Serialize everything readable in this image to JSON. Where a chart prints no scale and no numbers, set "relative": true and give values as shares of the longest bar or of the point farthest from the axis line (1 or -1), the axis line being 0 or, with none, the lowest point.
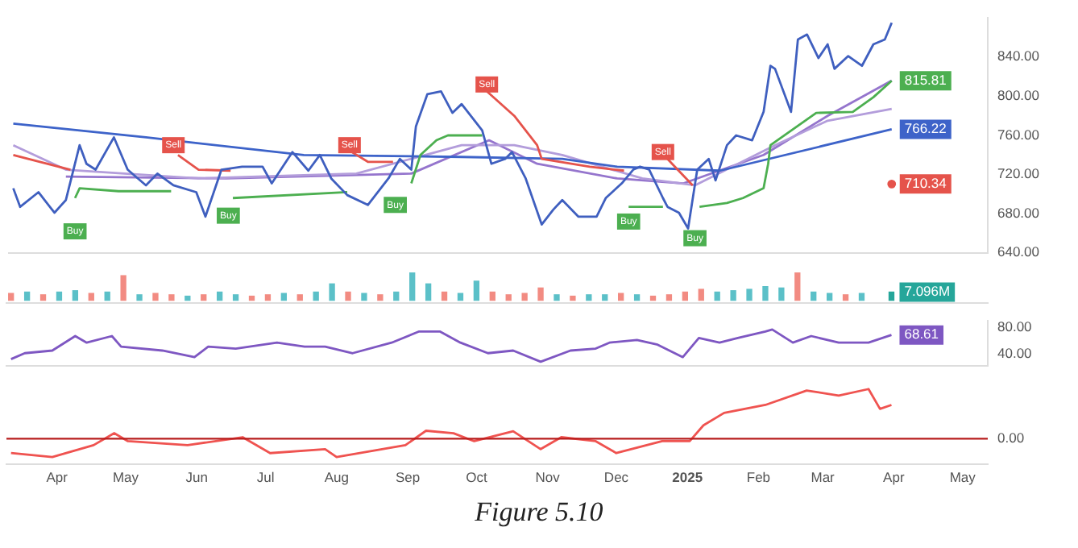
{
  "chart_data": [
    {
      "type": "line",
      "xlim": [
        "2024-03-10",
        "2025-05-12"
      ],
      "ylim": [
        640,
        880
      ],
      "yticks": [
        {
          "value": 640,
          "label": "640.00"
        },
        {
          "value": 680,
          "label": "680.00"
        },
        {
          "value": 720,
          "label": "720.00"
        },
        {
          "value": 760,
          "label": "760.00"
        },
        {
          "value": 800,
          "label": "800.00"
        },
        {
          "value": 840,
          "label": "840.00"
        }
      ],
      "tick_labels": "y",
      "marker": "none",
      "series": [
        {
          "color": "#3f5fbf",
          "x": [
            "2024-03-12",
            "2024-03-15",
            "2024-03-23",
            "2024-03-30",
            "2024-04-04",
            "2024-04-10",
            "2024-04-13",
            "2024-04-17",
            "2024-04-25",
            "2024-05-01",
            "2024-05-09",
            "2024-05-14",
            "2024-05-21",
            "2024-05-31",
            "2024-06-04",
            "2024-06-11",
            "2024-06-20",
            "2024-06-29",
            "2024-07-03",
            "2024-07-12",
            "2024-07-19",
            "2024-07-24",
            "2024-07-29",
            "2024-08-05",
            "2024-08-14",
            "2024-08-23",
            "2024-08-28",
            "2024-09-02",
            "2024-09-04",
            "2024-09-09",
            "2024-09-15",
            "2024-09-20",
            "2024-09-24",
            "2024-10-03",
            "2024-10-07",
            "2024-10-13",
            "2024-10-16",
            "2024-10-22",
            "2024-10-29",
            "2024-11-03",
            "2024-11-07",
            "2024-11-14",
            "2024-11-22",
            "2024-11-26",
            "2024-12-03",
            "2024-12-08",
            "2024-12-11",
            "2024-12-15",
            "2024-12-21",
            "2024-12-23",
            "2024-12-28",
            "2025-01-01",
            "2025-01-05",
            "2025-01-10",
            "2025-01-13",
            "2025-01-18",
            "2025-01-22",
            "2025-01-29",
            "2025-02-03",
            "2025-02-06",
            "2025-02-08",
            "2025-02-15",
            "2025-02-18",
            "2025-02-22",
            "2025-02-27",
            "2025-03-03",
            "2025-03-06",
            "2025-03-12",
            "2025-03-18",
            "2025-03-23",
            "2025-03-28",
            "2025-03-31"
          ],
          "values": [
            706,
            687,
            702,
            681,
            694,
            750,
            731,
            725,
            758,
            725,
            709,
            721,
            709,
            702,
            677,
            725,
            728,
            728,
            711,
            743,
            724,
            740,
            716,
            699,
            689,
            716,
            736,
            725,
            769,
            802,
            805,
            783,
            792,
            765,
            731,
            736,
            743,
            716,
            669,
            684,
            694,
            677,
            677,
            696,
            711,
            725,
            728,
            725,
            696,
            687,
            681,
            665,
            725,
            736,
            714,
            750,
            760,
            755,
            784,
            831,
            828,
            784,
            858,
            863,
            839,
            853,
            828,
            841,
            831,
            853,
            858,
            875
          ]
        },
        {
          "color": "#4caf50",
          "x": [
            "2024-04-08",
            "2024-04-10",
            "2024-04-27",
            "2024-05-20",
            "2024-05-21",
            "2024-06-16",
            "2024-08-05",
            "2024-08-06",
            "2024-09-02",
            "2024-09-06",
            "2024-09-13",
            "2024-09-18",
            "2024-10-03",
            "2024-10-04",
            "2024-12-06",
            "2024-12-21",
            "2024-12-22",
            "2025-01-06",
            "2025-01-18",
            "2025-01-25",
            "2025-02-03",
            "2025-02-05",
            "2025-02-06",
            "2025-02-26",
            "2025-03-14",
            "2025-03-23",
            "2025-03-31"
          ],
          "values": [
            696,
            706,
            703,
            703,
            null,
            696,
            702,
            null,
            711,
            740,
            755,
            760,
            760,
            null,
            687,
            687,
            null,
            687,
            691,
            696,
            706,
            731,
            750,
            783,
            784,
            799,
            815.81
          ],
          "value_labels": [
            null,
            null,
            null,
            null,
            null,
            null,
            null,
            null,
            null,
            null,
            null,
            null,
            null,
            null,
            null,
            null,
            null,
            null,
            null,
            null,
            null,
            null,
            null,
            null,
            null,
            null,
            "815.81"
          ]
        },
        {
          "color": "#e5534b",
          "x": [
            "2024-03-12",
            "2024-04-06",
            "2024-04-07",
            "2024-05-23",
            "2024-06-01",
            "2024-06-15",
            "2024-06-16",
            "2024-08-07",
            "2024-08-14",
            "2024-08-25",
            "2024-08-26",
            "2024-10-05",
            "2024-10-17",
            "2024-10-27",
            "2024-10-29",
            "2024-11-19",
            "2024-12-04",
            "2024-12-05",
            "2024-12-23",
            "2025-01-03",
            "2025-01-04",
            "2025-03-31"
          ],
          "values": [
            740,
            725,
            null,
            740,
            725,
            724,
            null,
            743,
            733,
            733,
            null,
            805,
            780,
            750,
            736,
            728,
            724,
            null,
            736,
            709,
            null,
            710.34
          ],
          "value_labels": [
            null,
            null,
            null,
            null,
            null,
            null,
            null,
            null,
            null,
            null,
            null,
            null,
            null,
            null,
            null,
            null,
            null,
            null,
            null,
            null,
            null,
            "710.34"
          ]
        },
        {
          "color": "#3d63c9",
          "x": [
            "2024-03-12",
            "2024-05-09",
            "2024-07-17",
            "2024-09-24",
            "2024-11-07",
            "2024-12-01",
            "2025-01-15",
            "2025-03-31"
          ],
          "values": [
            772,
            758,
            740,
            738,
            736,
            728,
            724,
            766.22
          ],
          "value_labels": [
            null,
            null,
            null,
            null,
            null,
            null,
            null,
            "766.22"
          ]
        },
        {
          "color": "#b39ddb",
          "x": [
            "2024-03-12",
            "2024-04-04",
            "2024-06-01",
            "2024-08-09",
            "2024-09-24",
            "2024-10-17",
            "2024-11-07",
            "2024-12-12",
            "2025-01-04",
            "2025-02-08",
            "2025-03-03",
            "2025-03-31"
          ],
          "values": [
            750,
            725,
            716,
            721,
            750,
            750,
            740,
            716,
            709,
            750,
            775,
            787
          ]
        },
        {
          "color": "#9575cd",
          "x": [
            "2024-04-04",
            "2024-06-13",
            "2024-09-02",
            "2024-10-06",
            "2024-10-27",
            "2024-12-01",
            "2024-12-30",
            "2025-02-03",
            "2025-03-03",
            "2025-03-31"
          ],
          "values": [
            718,
            716,
            721,
            755,
            731,
            716,
            711,
            740,
            780,
            816
          ]
        }
      ],
      "annotations": [
        {
          "text": "Buy",
          "x": "2024-04-08",
          "y": 662
        },
        {
          "text": "Buy",
          "x": "2024-06-14",
          "y": 678
        },
        {
          "text": "Buy",
          "x": "2024-08-26",
          "y": 689
        },
        {
          "text": "Buy",
          "x": "2024-12-06",
          "y": 672
        },
        {
          "text": "Buy",
          "x": "2025-01-04",
          "y": 655
        },
        {
          "text": "Sell",
          "x": "2024-05-21",
          "y": 750
        },
        {
          "text": "Sell",
          "x": "2024-08-06",
          "y": 750
        },
        {
          "text": "Sell",
          "x": "2024-10-05",
          "y": 812
        },
        {
          "text": "Sell",
          "x": "2024-12-21",
          "y": 743
        }
      ]
    },
    {
      "type": "bar",
      "relative": true,
      "tick_labels": false,
      "xlim": [
        "2024-03-10",
        "2025-05-12"
      ],
      "annotations": [
        "7.096M"
      ],
      "x": [
        "2024-03-12",
        "2024-03-19",
        "2024-03-26",
        "2024-04-02",
        "2024-04-09",
        "2024-04-16",
        "2024-04-23",
        "2024-04-30",
        "2024-05-07",
        "2024-05-14",
        "2024-05-21",
        "2024-05-28",
        "2024-06-04",
        "2024-06-11",
        "2024-06-18",
        "2024-06-25",
        "2024-07-02",
        "2024-07-09",
        "2024-07-16",
        "2024-07-23",
        "2024-07-30",
        "2024-08-06",
        "2024-08-13",
        "2024-08-20",
        "2024-08-27",
        "2024-09-03",
        "2024-09-10",
        "2024-09-17",
        "2024-09-24",
        "2024-10-01",
        "2024-10-08",
        "2024-10-15",
        "2024-10-22",
        "2024-10-29",
        "2024-11-05",
        "2024-11-12",
        "2024-11-19",
        "2024-11-26",
        "2024-12-03",
        "2024-12-10",
        "2024-12-17",
        "2024-12-24",
        "2024-12-31",
        "2025-01-07",
        "2025-01-14",
        "2025-01-21",
        "2025-01-28",
        "2025-02-04",
        "2025-02-11",
        "2025-02-18",
        "2025-02-25",
        "2025-03-04",
        "2025-03-11",
        "2025-03-18",
        "2025-03-31"
      ],
      "values": [
        0.25,
        0.3,
        0.2,
        0.3,
        0.35,
        0.25,
        0.3,
        0.9,
        0.2,
        0.25,
        0.2,
        0.15,
        0.2,
        0.3,
        0.2,
        0.15,
        0.2,
        0.25,
        0.2,
        0.3,
        0.6,
        0.3,
        0.25,
        0.2,
        0.3,
        1,
        0.6,
        0.3,
        0.25,
        0.7,
        0.3,
        0.2,
        0.25,
        0.45,
        0.2,
        0.15,
        0.2,
        0.2,
        0.25,
        0.2,
        0.15,
        0.2,
        0.3,
        0.4,
        0.3,
        0.35,
        0.4,
        0.5,
        0.45,
        1,
        0.3,
        0.25,
        0.2,
        0.25,
        0.3
      ],
      "colors": [
        "#f28b82",
        "#5bc0c8",
        "#f28b82",
        "#5bc0c8",
        "#5bc0c8",
        "#f28b82",
        "#5bc0c8",
        "#f28b82",
        "#5bc0c8",
        "#f28b82",
        "#f28b82",
        "#5bc0c8",
        "#f28b82",
        "#5bc0c8",
        "#5bc0c8",
        "#f28b82",
        "#f28b82",
        "#5bc0c8",
        "#f28b82",
        "#5bc0c8",
        "#5bc0c8",
        "#f28b82",
        "#5bc0c8",
        "#f28b82",
        "#5bc0c8",
        "#5bc0c8",
        "#5bc0c8",
        "#f28b82",
        "#5bc0c8",
        "#5bc0c8",
        "#f28b82",
        "#f28b82",
        "#f28b82",
        "#f28b82",
        "#5bc0c8",
        "#f28b82",
        "#5bc0c8",
        "#5bc0c8",
        "#f28b82",
        "#5bc0c8",
        "#f28b82",
        "#f28b82",
        "#f28b82",
        "#f28b82",
        "#5bc0c8",
        "#5bc0c8",
        "#5bc0c8",
        "#5bc0c8",
        "#5bc0c8",
        "#f28b82",
        "#5bc0c8",
        "#5bc0c8",
        "#f28b82",
        "#5bc0c8",
        "#26a69a"
      ],
      "grid": false
    },
    {
      "type": "line",
      "tick_labels": "y",
      "marker": "none",
      "xlim": [
        "2024-03-10",
        "2025-05-12"
      ],
      "ylim": [
        22,
        90
      ],
      "yticks": [
        {
          "value": 40,
          "label": "40.00"
        },
        {
          "value": 80,
          "label": "80.00"
        }
      ],
      "series": [
        {
          "color": "#7e57c2",
          "x": [
            "2024-03-12",
            "2024-03-18",
            "2024-03-30",
            "2024-04-09",
            "2024-04-14",
            "2024-04-25",
            "2024-04-29",
            "2024-05-17",
            "2024-05-31",
            "2024-06-06",
            "2024-06-18",
            "2024-07-06",
            "2024-07-18",
            "2024-07-27",
            "2024-08-08",
            "2024-08-25",
            "2024-09-06",
            "2024-09-15",
            "2024-09-24",
            "2024-10-06",
            "2024-10-17",
            "2024-10-29",
            "2024-11-11",
            "2024-11-22",
            "2024-11-28",
            "2024-12-10",
            "2024-12-19",
            "2024-12-30",
            "2025-01-06",
            "2025-01-15",
            "2025-01-23",
            "2025-02-04",
            "2025-02-07",
            "2025-02-16",
            "2025-02-24",
            "2025-03-08",
            "2025-03-21",
            "2025-03-31"
          ],
          "values": [
            32,
            41,
            45,
            67,
            57,
            67,
            51,
            45,
            35,
            51,
            48,
            57,
            51,
            51,
            41,
            57,
            74,
            74,
            57,
            41,
            45,
            28,
            45,
            48,
            57,
            61,
            54,
            35,
            64,
            57,
            64,
            74,
            77,
            57,
            67,
            57,
            57,
            68.61
          ],
          "value_labels": [
            null,
            null,
            null,
            null,
            null,
            null,
            null,
            null,
            null,
            null,
            null,
            null,
            null,
            null,
            null,
            null,
            null,
            null,
            null,
            null,
            null,
            null,
            null,
            null,
            null,
            null,
            null,
            null,
            null,
            null,
            null,
            null,
            null,
            null,
            null,
            null,
            null,
            "68.61"
          ]
        }
      ]
    },
    {
      "type": "line",
      "relative": true,
      "marker": "none",
      "xlim": [
        "2024-03-10",
        "2025-05-12"
      ],
      "xticks": [
        {
          "value": "2024-04-01",
          "label": "Apr"
        },
        {
          "value": "2024-05-01",
          "label": "May"
        },
        {
          "value": "2024-06-01",
          "label": "Jun"
        },
        {
          "value": "2024-07-01",
          "label": "Jul"
        },
        {
          "value": "2024-08-01",
          "label": "Aug"
        },
        {
          "value": "2024-09-01",
          "label": "Sep"
        },
        {
          "value": "2024-10-01",
          "label": "Oct"
        },
        {
          "value": "2024-11-01",
          "label": "Nov"
        },
        {
          "value": "2024-12-01",
          "label": "Dec"
        },
        {
          "value": "2025-01-01",
          "label": "2025"
        },
        {
          "value": "2025-02-01",
          "label": "Feb"
        },
        {
          "value": "2025-03-01",
          "label": "Mar"
        },
        {
          "value": "2025-04-01",
          "label": "Apr"
        },
        {
          "value": "2025-05-01",
          "label": "May"
        }
      ],
      "x": [
        "2024-03-12",
        "2024-03-30",
        "2024-04-17",
        "2024-04-26",
        "2024-05-02",
        "2024-05-28",
        "2024-06-21",
        "2024-07-03",
        "2024-07-27",
        "2024-08-01",
        "2024-08-31",
        "2024-09-09",
        "2024-09-21",
        "2024-09-30",
        "2024-10-17",
        "2024-10-29",
        "2024-11-07",
        "2024-11-22",
        "2024-12-01",
        "2024-12-21",
        "2025-01-02",
        "2025-01-08",
        "2025-01-17",
        "2025-02-04",
        "2025-02-22",
        "2025-03-08",
        "2025-03-21",
        "2025-03-26",
        "2025-03-31"
      ],
      "values": [
        -0.29,
        -0.37,
        -0.13,
        0.11,
        -0.05,
        -0.13,
        0.03,
        -0.29,
        -0.21,
        -0.37,
        -0.13,
        0.16,
        0.11,
        -0.05,
        0.15,
        -0.21,
        0.03,
        -0.05,
        -0.29,
        -0.05,
        -0.05,
        0.27,
        0.52,
        0.68,
        0.97,
        0.87,
        1,
        0.6,
        0.68
      ],
      "color": "#ef5350",
      "ref_lines": [
        {
          "axis": "y",
          "value": 0,
          "label": "0.00",
          "color": "#b71c1c"
        }
      ],
      "annotations": [
        "Figure 5.10"
      ]
    }
  ]
}
